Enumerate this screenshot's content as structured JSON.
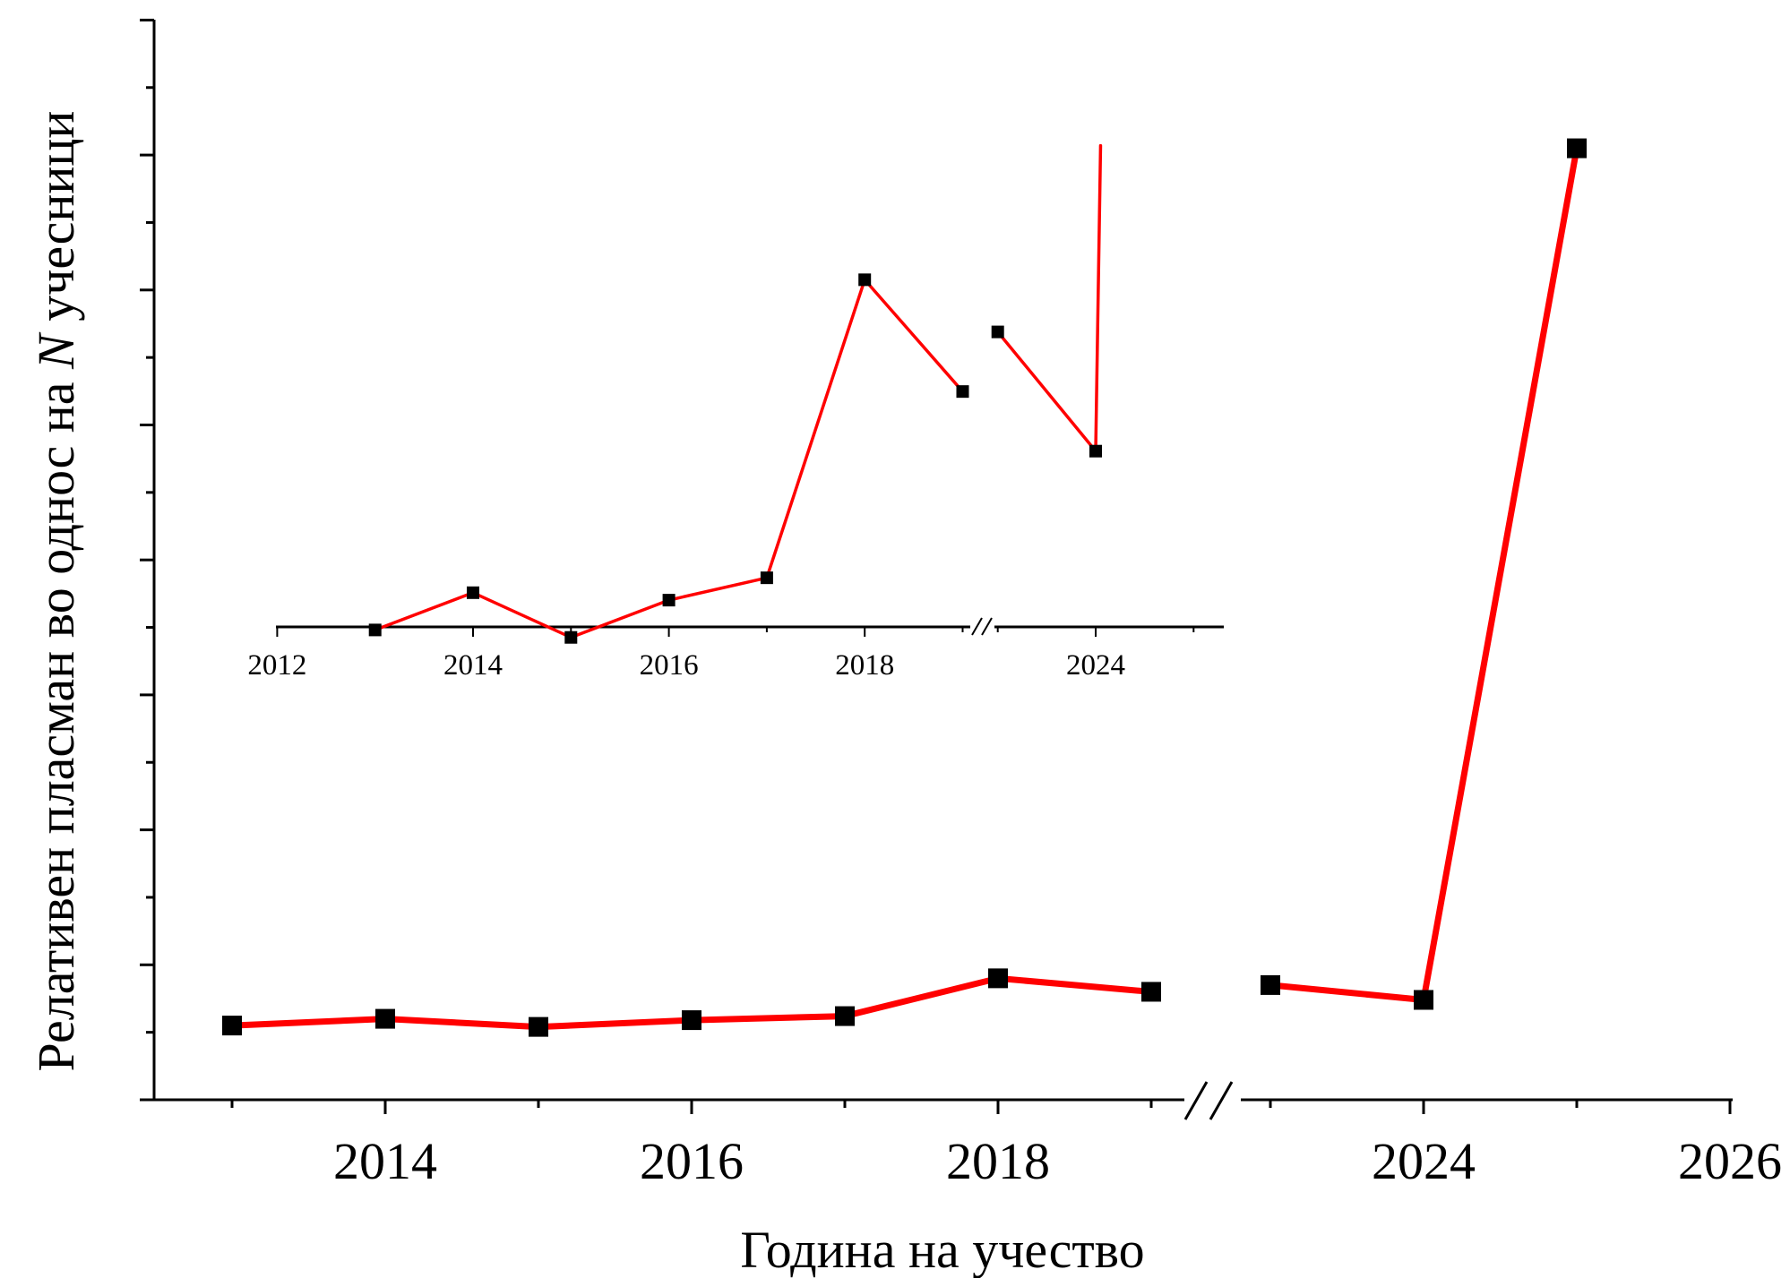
{
  "chart_data": [
    {
      "type": "line",
      "title": "",
      "xlabel": "Година на учество",
      "ylabel_parts": [
        "Релативен пласман во однос на ",
        "N",
        " учесници"
      ],
      "x_axis": {
        "break": {
          "after": 2019,
          "before": 2023
        },
        "segments": [
          {
            "range": [
              2013,
              2019
            ]
          },
          {
            "range": [
              2023,
              2026
            ]
          }
        ],
        "tick_labels": [
          "2014",
          "2016",
          "2018",
          "2024",
          "2026"
        ],
        "tick_values": [
          2014,
          2016,
          2018,
          2024,
          2026
        ]
      },
      "y_axis": {
        "tick_labels_visible": false,
        "range": [
          0,
          8
        ],
        "major_step": 1
      },
      "series": [
        {
          "color": "#ff0000",
          "marker": "square",
          "points": [
            {
              "x": 2013,
              "y": 0.55
            },
            {
              "x": 2014,
              "y": 0.6
            },
            {
              "x": 2015,
              "y": 0.54
            },
            {
              "x": 2016,
              "y": 0.59
            },
            {
              "x": 2017,
              "y": 0.62
            },
            {
              "x": 2018,
              "y": 0.9
            },
            {
              "x": 2019,
              "y": 0.8
            },
            {
              "x": 2023,
              "y": 0.85
            },
            {
              "x": 2024,
              "y": 0.74
            },
            {
              "x": 2025,
              "y": 7.05
            }
          ]
        }
      ]
    },
    {
      "type": "line",
      "title": "",
      "role": "inset",
      "x_axis": {
        "break": {
          "after": 2019,
          "before": 2023
        },
        "tick_labels": [
          "2012",
          "2014",
          "2016",
          "2018",
          "2024"
        ],
        "tick_values": [
          2012,
          2014,
          2016,
          2018,
          2024
        ]
      },
      "series": [
        {
          "color": "#ff0000",
          "marker": "square",
          "points": [
            {
              "x": 2013,
              "y": 0.55
            },
            {
              "x": 2014,
              "y": 0.6
            },
            {
              "x": 2015,
              "y": 0.54
            },
            {
              "x": 2016,
              "y": 0.59
            },
            {
              "x": 2017,
              "y": 0.62
            },
            {
              "x": 2018,
              "y": 1.02
            },
            {
              "x": 2019,
              "y": 0.87
            },
            {
              "x": 2023,
              "y": 0.95
            },
            {
              "x": 2024,
              "y": 0.79
            }
          ],
          "trailing_line_to": {
            "x": 2024.05,
            "y": 1.2
          }
        }
      ]
    }
  ]
}
